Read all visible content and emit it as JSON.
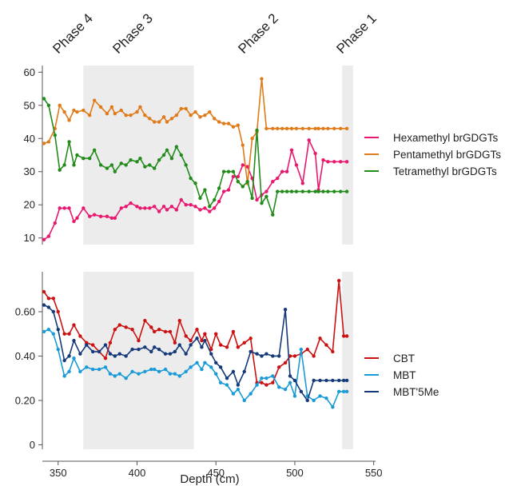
{
  "chart_data": [
    {
      "type": "line",
      "ylim": [
        8,
        62
      ],
      "yticks": [
        10,
        20,
        30,
        40,
        50,
        60
      ],
      "xlim": [
        340,
        537
      ],
      "grid": false,
      "legend_position": "right",
      "phases": [
        {
          "label": "Phase 4",
          "start": 340,
          "end": 366,
          "shaded": false
        },
        {
          "label": "Phase 3",
          "start": 366,
          "end": 436,
          "shaded": true
        },
        {
          "label": "Phase 2",
          "start": 436,
          "end": 530,
          "shaded": false
        },
        {
          "label": "Phase 1",
          "start": 530,
          "end": 537,
          "shaded": true
        }
      ],
      "series": [
        {
          "name": "Hexamethyl brGDGTs",
          "color": "#e8186f",
          "x": [
            341,
            344,
            348,
            351,
            354,
            357,
            360,
            362,
            366,
            370,
            373,
            377,
            381,
            384,
            386,
            390,
            393,
            396,
            400,
            402,
            405,
            408,
            411,
            414,
            417,
            419,
            422,
            425,
            428,
            431,
            434,
            437,
            440,
            443,
            446,
            449,
            452,
            455,
            458,
            461,
            464,
            467,
            470,
            473,
            476,
            479,
            482,
            486,
            489,
            492,
            495,
            498,
            501,
            505,
            509,
            513,
            515,
            518,
            521,
            525,
            529,
            533
          ],
          "y": [
            9.5,
            10.5,
            14.5,
            19,
            19,
            19,
            15,
            16,
            19,
            16.5,
            17,
            16.5,
            16.5,
            16,
            16,
            19,
            19.5,
            20.5,
            19.5,
            19,
            19,
            19,
            19.5,
            18,
            19.5,
            18.5,
            19.5,
            18.5,
            21.5,
            20,
            20,
            19.5,
            18.5,
            19,
            18,
            19,
            21,
            24,
            24.5,
            28.5,
            28.5,
            32,
            31.5,
            28,
            21.5,
            23,
            24,
            27,
            28,
            30,
            30,
            36.5,
            32,
            26.5,
            39.5,
            35.5,
            24.5,
            33.5,
            33,
            33,
            33,
            33
          ]
        },
        {
          "name": "Pentamethyl brGDGTs",
          "color": "#e07b1a",
          "x": [
            341,
            344,
            348,
            351,
            354,
            357,
            360,
            362,
            366,
            370,
            373,
            377,
            381,
            384,
            386,
            390,
            393,
            396,
            400,
            402,
            405,
            408,
            411,
            414,
            417,
            419,
            422,
            425,
            428,
            431,
            434,
            437,
            440,
            443,
            446,
            449,
            452,
            455,
            458,
            461,
            464,
            467,
            470,
            473,
            476,
            479,
            482,
            486,
            489,
            492,
            495,
            498,
            501,
            505,
            509,
            513,
            515,
            518,
            521,
            525,
            529,
            533
          ],
          "y": [
            38.5,
            39,
            43,
            50,
            48,
            45.5,
            48.5,
            48,
            48.5,
            47,
            51.5,
            49.5,
            47.5,
            49.5,
            47.5,
            48.5,
            47,
            47,
            48,
            49.5,
            47,
            46,
            45,
            45,
            46.5,
            45,
            46,
            47,
            49,
            49,
            47,
            48,
            46.5,
            47,
            48,
            46,
            45,
            44.5,
            44.5,
            43.5,
            44,
            38,
            26.5,
            40,
            42,
            58,
            43,
            43,
            43,
            43,
            43,
            43,
            43,
            43,
            43,
            43,
            43,
            43,
            43,
            43,
            43,
            43
          ]
        },
        {
          "name": "Tetramethyl brGDGTs",
          "color": "#228b1a",
          "x": [
            341,
            344,
            348,
            351,
            354,
            357,
            360,
            362,
            366,
            370,
            373,
            377,
            381,
            384,
            386,
            390,
            393,
            396,
            400,
            402,
            405,
            408,
            411,
            414,
            417,
            419,
            422,
            425,
            428,
            431,
            434,
            437,
            440,
            443,
            446,
            449,
            452,
            455,
            458,
            461,
            464,
            467,
            470,
            473,
            476,
            479,
            482,
            486,
            489,
            492,
            495,
            498,
            501,
            505,
            509,
            513,
            515,
            518,
            521,
            525,
            529,
            533
          ],
          "y": [
            52,
            50,
            41,
            30.5,
            32,
            39,
            32,
            35,
            34,
            34,
            36.5,
            32,
            31,
            32,
            30,
            32.5,
            32,
            33.5,
            33,
            34,
            31.5,
            32,
            31,
            33.5,
            35,
            36.5,
            34,
            37.5,
            35,
            32,
            28,
            26.5,
            22,
            24.5,
            19.5,
            21.5,
            25,
            30,
            30,
            30,
            27,
            25.5,
            27,
            22,
            42.5,
            20.5,
            22.5,
            17,
            24,
            24,
            24,
            24,
            24,
            24,
            24,
            24,
            24,
            24,
            24,
            24,
            24,
            24
          ]
        }
      ]
    },
    {
      "type": "line",
      "ylim": [
        -0.02,
        0.78
      ],
      "yticks": [
        "0",
        "0.20",
        "0.40",
        "0.60"
      ],
      "ytick_values": [
        0,
        0.2,
        0.4,
        0.6
      ],
      "xlim": [
        340,
        537
      ],
      "xticks": [
        350,
        400,
        450,
        500,
        550
      ],
      "xlabel": "Depth (cm)",
      "grid": false,
      "legend_position": "right",
      "series": [
        {
          "name": "CBT",
          "color": "#cc1111",
          "x": [
            341,
            344,
            347,
            350,
            354,
            357,
            360,
            364,
            368,
            372,
            376,
            380,
            383,
            386,
            389,
            393,
            397,
            401,
            405,
            409,
            411,
            414,
            418,
            421,
            424,
            427,
            431,
            434,
            438,
            441,
            443,
            447,
            450,
            453,
            457,
            461,
            464,
            468,
            472,
            476,
            479,
            482,
            486,
            490,
            494,
            497,
            500,
            504,
            508,
            512,
            516,
            520,
            524,
            528,
            531,
            533
          ],
          "y": [
            0.69,
            0.66,
            0.66,
            0.6,
            0.5,
            0.5,
            0.54,
            0.49,
            0.46,
            0.45,
            0.42,
            0.39,
            0.46,
            0.52,
            0.54,
            0.53,
            0.52,
            0.47,
            0.56,
            0.53,
            0.51,
            0.52,
            0.51,
            0.51,
            0.46,
            0.56,
            0.49,
            0.47,
            0.52,
            0.47,
            0.5,
            0.43,
            0.5,
            0.45,
            0.44,
            0.51,
            0.44,
            0.46,
            0.48,
            0.28,
            0.28,
            0.27,
            0.28,
            0.35,
            0.37,
            0.4,
            0.4,
            0.41,
            0.43,
            0.4,
            0.48,
            0.45,
            0.42,
            0.74,
            0.49,
            0.49
          ]
        },
        {
          "name": "MBT",
          "color": "#1a9bd7",
          "x": [
            341,
            344,
            347,
            350,
            354,
            357,
            360,
            364,
            368,
            372,
            376,
            380,
            383,
            386,
            389,
            393,
            397,
            401,
            405,
            409,
            411,
            414,
            418,
            421,
            424,
            427,
            431,
            434,
            438,
            441,
            443,
            447,
            450,
            453,
            457,
            461,
            464,
            468,
            472,
            476,
            479,
            482,
            486,
            490,
            494,
            497,
            500,
            504,
            508,
            512,
            516,
            520,
            524,
            528,
            531,
            533
          ],
          "y": [
            0.51,
            0.52,
            0.5,
            0.43,
            0.31,
            0.33,
            0.39,
            0.33,
            0.35,
            0.34,
            0.34,
            0.35,
            0.32,
            0.31,
            0.32,
            0.3,
            0.33,
            0.32,
            0.33,
            0.34,
            0.34,
            0.33,
            0.34,
            0.32,
            0.32,
            0.31,
            0.33,
            0.35,
            0.37,
            0.34,
            0.37,
            0.35,
            0.32,
            0.28,
            0.27,
            0.23,
            0.25,
            0.2,
            0.23,
            0.27,
            0.3,
            0.3,
            0.31,
            0.26,
            0.25,
            0.28,
            0.22,
            0.43,
            0.22,
            0.2,
            0.22,
            0.21,
            0.17,
            0.24,
            0.24,
            0.24
          ]
        },
        {
          "name": "MBT'5Me",
          "color": "#153a7a",
          "x": [
            341,
            344,
            347,
            350,
            354,
            357,
            360,
            364,
            368,
            372,
            376,
            380,
            383,
            386,
            389,
            393,
            397,
            401,
            405,
            409,
            411,
            414,
            418,
            421,
            424,
            427,
            431,
            434,
            438,
            441,
            443,
            447,
            450,
            453,
            457,
            461,
            464,
            468,
            472,
            476,
            479,
            482,
            486,
            490,
            494,
            497,
            500,
            504,
            508,
            512,
            516,
            520,
            524,
            528,
            531,
            533
          ],
          "y": [
            0.63,
            0.62,
            0.6,
            0.52,
            0.38,
            0.4,
            0.47,
            0.41,
            0.45,
            0.42,
            0.42,
            0.45,
            0.41,
            0.4,
            0.41,
            0.4,
            0.43,
            0.43,
            0.44,
            0.42,
            0.44,
            0.43,
            0.41,
            0.41,
            0.42,
            0.45,
            0.41,
            0.45,
            0.48,
            0.44,
            0.47,
            0.41,
            0.37,
            0.35,
            0.3,
            0.33,
            0.27,
            0.33,
            0.42,
            0.41,
            0.4,
            0.41,
            0.4,
            0.4,
            0.61,
            0.31,
            0.29,
            0.24,
            0.2,
            0.29,
            0.29,
            0.29,
            0.29,
            0.29,
            0.29,
            0.29
          ]
        }
      ]
    }
  ]
}
